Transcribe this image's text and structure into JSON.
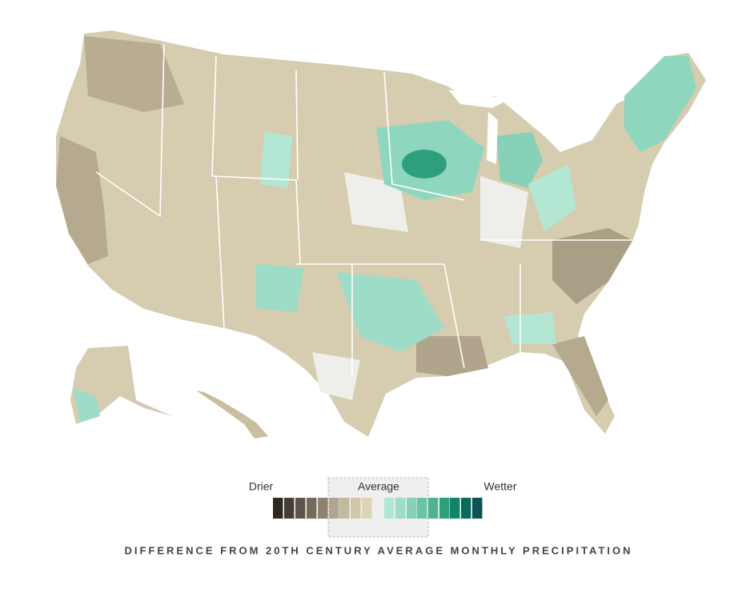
{
  "legend": {
    "drier": "Drier",
    "average": "Average",
    "wetter": "Wetter",
    "colors": [
      "#2f2823",
      "#463d34",
      "#5e5347",
      "#766a5b",
      "#8f8370",
      "#b0a68f",
      "#c3b99f",
      "#d1c7aa",
      "#ddd4b6",
      "#b3e6d3",
      "#9ddcc6",
      "#86d1b7",
      "#6bc4a6",
      "#4fb392",
      "#2e9f7d",
      "#128568",
      "#0b6b5b",
      "#0a5455"
    ],
    "caption": "DIFFERENCE FROM 20TH CENTURY AVERAGE MONTHLY PRECIPITATION"
  }
}
